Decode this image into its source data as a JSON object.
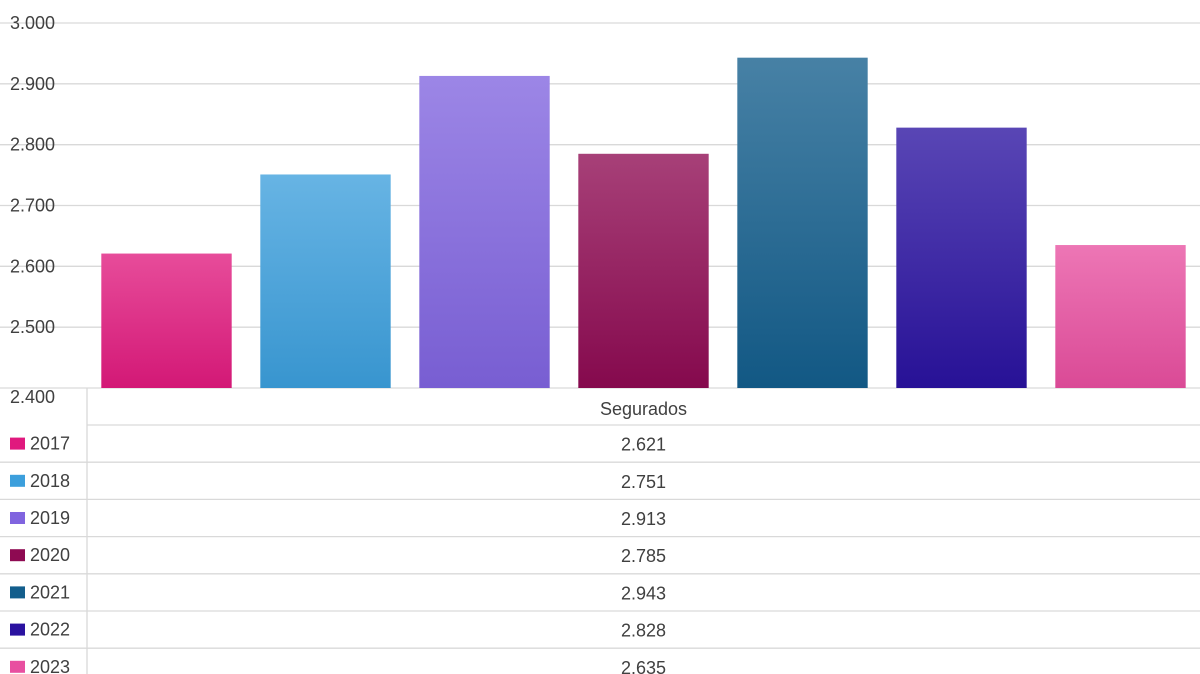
{
  "chart_data": {
    "type": "bar",
    "categories": [
      "Segurados"
    ],
    "series": [
      {
        "name": "2017",
        "values": [
          2621
        ],
        "label": "2.621",
        "color": "#E0197E"
      },
      {
        "name": "2018",
        "values": [
          2751
        ],
        "label": "2.751",
        "color": "#3C9FDC"
      },
      {
        "name": "2019",
        "values": [
          2913
        ],
        "label": "2.913",
        "color": "#8064DF"
      },
      {
        "name": "2020",
        "values": [
          2785
        ],
        "label": "2.785",
        "color": "#8E0A52"
      },
      {
        "name": "2021",
        "values": [
          2943
        ],
        "label": "2.943",
        "color": "#135E8C"
      },
      {
        "name": "2022",
        "values": [
          2828
        ],
        "label": "2.828",
        "color": "#2A12A0"
      },
      {
        "name": "2023",
        "values": [
          2635
        ],
        "label": "2.635",
        "color": "#E84FA0"
      }
    ],
    "ylim": [
      2400,
      3000
    ],
    "yticks": [
      {
        "value": 2400,
        "label": "2.400"
      },
      {
        "value": 2500,
        "label": "2.500"
      },
      {
        "value": 2600,
        "label": "2.600"
      },
      {
        "value": 2700,
        "label": "2.700"
      },
      {
        "value": 2800,
        "label": "2.800"
      },
      {
        "value": 2900,
        "label": "2.900"
      },
      {
        "value": 3000,
        "label": "3.000"
      }
    ],
    "grid": true,
    "legend": "data-table"
  }
}
